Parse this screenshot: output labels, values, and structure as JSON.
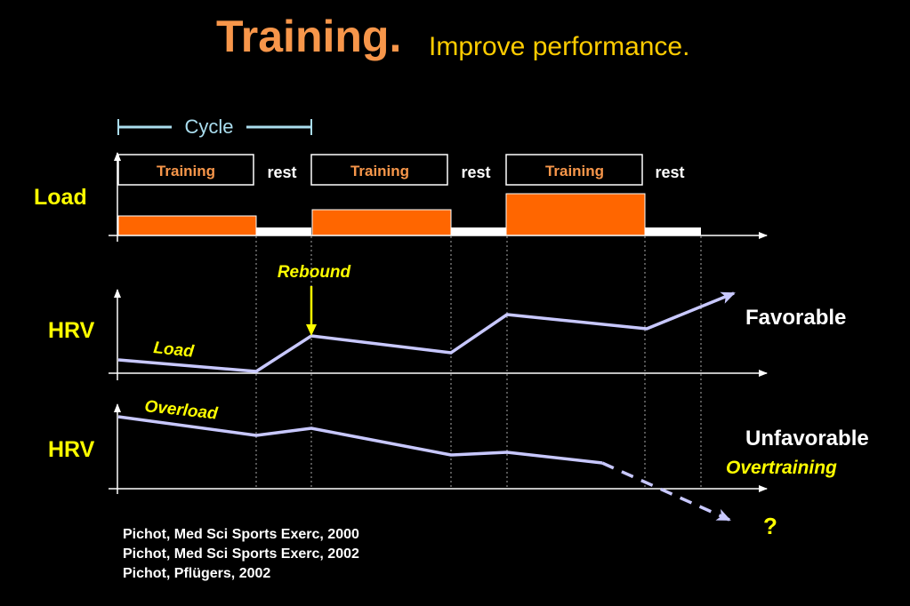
{
  "title": {
    "main": "Training.",
    "sub": "Improve performance."
  },
  "cycle_label": "Cycle",
  "phase_labels": [
    "Training",
    "rest",
    "Training",
    "rest",
    "Training",
    "rest"
  ],
  "panels": {
    "load": {
      "axis_label": "Load"
    },
    "hrv_favorable": {
      "axis_label": "HRV",
      "series_label": "Load",
      "annotation": "Rebound",
      "outcome": "Favorable"
    },
    "hrv_unfavorable": {
      "axis_label": "HRV",
      "series_label": "Overload",
      "outcome": "Unfavorable",
      "outcome_note": "Overtraining",
      "question": "?"
    }
  },
  "references": [
    "Pichot, Med Sci Sports Exerc, 2000",
    "Pichot, Med Sci Sports Exerc, 2002",
    "Pichot, Pflügers, 2002"
  ],
  "colors": {
    "background": "#000000",
    "title": "#f7964a",
    "subtitle": "#ffcc00",
    "accent_yellow": "#ffff00",
    "bar_fill": "#ff6600",
    "hrv_line": "#c8c8ff",
    "cycle_marker": "#aaddee"
  }
}
